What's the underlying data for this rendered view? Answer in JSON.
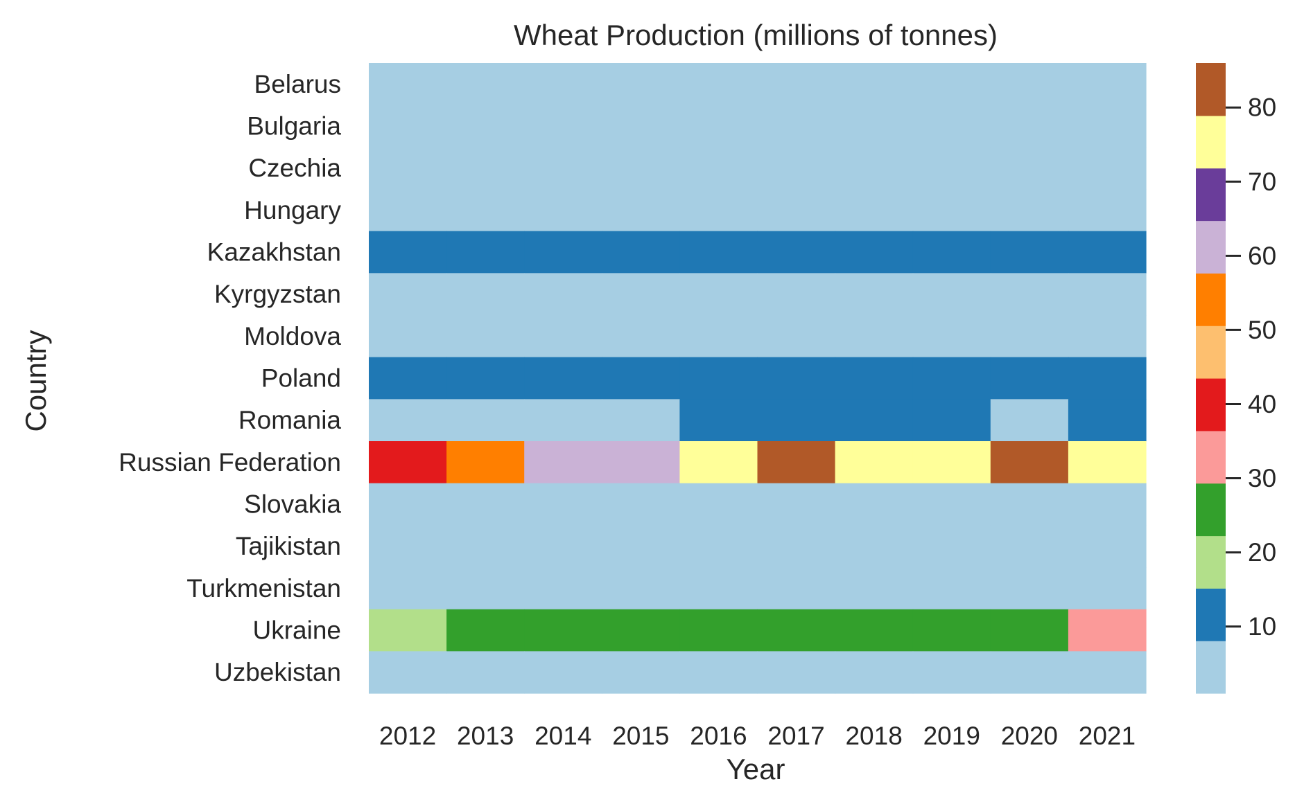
{
  "chart_data": {
    "type": "heatmap",
    "title": "Wheat Production (millions of tonnes)",
    "xlabel": "Year",
    "ylabel": "Country",
    "x": [
      "2012",
      "2013",
      "2014",
      "2015",
      "2016",
      "2017",
      "2018",
      "2019",
      "2020",
      "2021"
    ],
    "y": [
      "Belarus",
      "Bulgaria",
      "Czechia",
      "Hungary",
      "Kazakhstan",
      "Kyrgyzstan",
      "Moldova",
      "Poland",
      "Romania",
      "Russian Federation",
      "Slovakia",
      "Tajikistan",
      "Turkmenistan",
      "Ukraine",
      "Uzbekistan"
    ],
    "values": [
      [
        2.5,
        2.0,
        2.0,
        2.7,
        2.3,
        2.2,
        2.2,
        2.8,
        2.6,
        2.5
      ],
      [
        4.5,
        5.5,
        5.3,
        5.0,
        5.5,
        6.0,
        6.2,
        6.3,
        4.8,
        7.3
      ],
      [
        3.5,
        4.7,
        5.4,
        5.3,
        5.5,
        4.7,
        4.4,
        4.8,
        5.0,
        5.0
      ],
      [
        4.0,
        5.0,
        5.3,
        5.3,
        5.6,
        5.2,
        5.3,
        5.3,
        5.0,
        5.4
      ],
      [
        9.8,
        13.9,
        13.0,
        13.7,
        15.0,
        14.8,
        13.9,
        11.5,
        14.3,
        11.8
      ],
      [
        0.8,
        0.8,
        0.6,
        0.7,
        0.7,
        0.6,
        0.6,
        0.6,
        0.6,
        0.6
      ],
      [
        0.6,
        1.0,
        1.1,
        1.0,
        1.2,
        1.2,
        1.1,
        1.0,
        0.6,
        1.3
      ],
      [
        8.6,
        9.5,
        11.6,
        11.0,
        10.8,
        11.7,
        9.8,
        10.2,
        12.4,
        11.9
      ],
      [
        5.3,
        7.3,
        7.6,
        8.0,
        8.4,
        10.0,
        10.1,
        10.3,
        6.4,
        11.3
      ],
      [
        37.7,
        52.1,
        59.7,
        61.8,
        73.3,
        86.0,
        72.1,
        74.5,
        85.9,
        76.1
      ],
      [
        1.6,
        1.7,
        2.1,
        2.0,
        2.1,
        1.9,
        1.9,
        2.3,
        1.9,
        2.0
      ],
      [
        0.8,
        0.9,
        0.8,
        0.8,
        0.8,
        0.8,
        0.7,
        0.8,
        0.9,
        0.9
      ],
      [
        1.2,
        1.2,
        1.2,
        1.4,
        1.2,
        1.2,
        1.2,
        1.2,
        1.2,
        1.2
      ],
      [
        15.8,
        22.3,
        24.7,
        27.3,
        26.1,
        26.2,
        25.1,
        28.4,
        24.9,
        32.2
      ],
      [
        6.7,
        6.9,
        6.9,
        7.0,
        6.8,
        6.0,
        5.3,
        6.0,
        6.1,
        6.0
      ]
    ],
    "colorscale": "Paired",
    "colorbar": {
      "vmin": 1.0,
      "vmax": 86.0,
      "ticks": [
        10,
        20,
        30,
        40,
        50,
        60,
        70,
        80
      ],
      "colors": [
        "#a6cee3",
        "#1f78b4",
        "#b2df8a",
        "#33a02c",
        "#fb9a99",
        "#e31a1c",
        "#fdbf6f",
        "#ff7f00",
        "#cab2d6",
        "#6a3d9a",
        "#ffff99",
        "#b15928"
      ]
    },
    "grid": false,
    "legend": "colorbar-right"
  }
}
